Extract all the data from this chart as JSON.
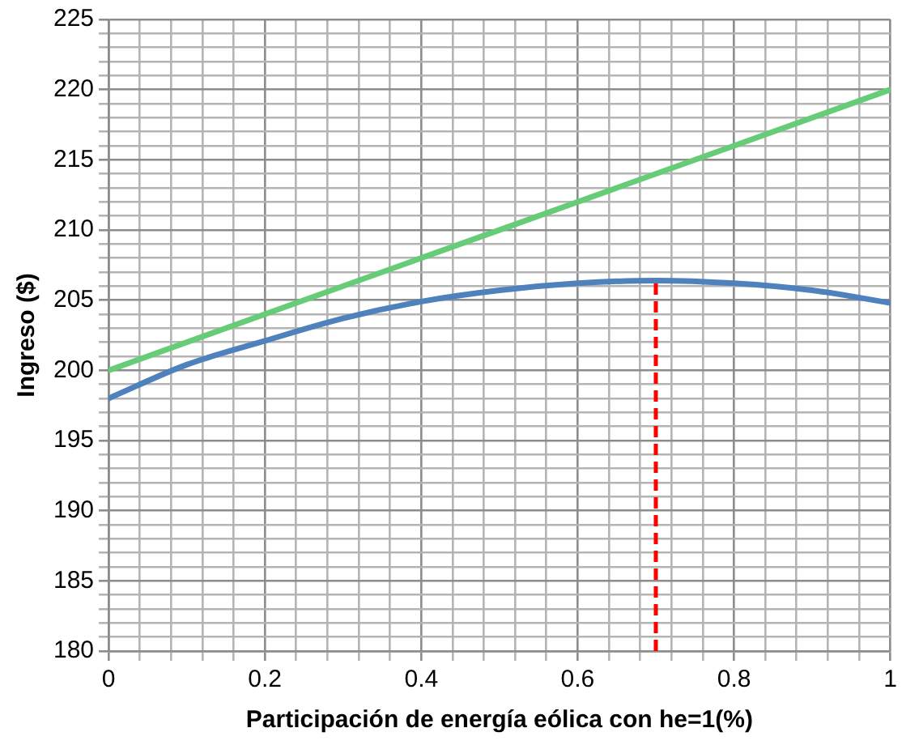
{
  "chart_data": {
    "type": "line",
    "xlabel": "Participación de energía eólica con he=1(%)",
    "ylabel": "Ingreso ($)",
    "series": [
      {
        "color": "#4f81bd",
        "x": [
          0,
          0.1,
          0.2,
          0.3,
          0.4,
          0.5,
          0.6,
          0.7,
          0.8,
          0.9,
          1
        ],
        "values": [
          198.0,
          200.4,
          202.1,
          203.7,
          204.9,
          205.7,
          206.2,
          206.4,
          206.2,
          205.7,
          204.8
        ]
      },
      {
        "color": "#66cc77",
        "x": [
          0,
          1
        ],
        "values": [
          200,
          220
        ]
      }
    ],
    "xlim": [
      0,
      1
    ],
    "xticks": [
      0,
      {
        "value": 0.04,
        "label": null
      },
      {
        "value": 0.08,
        "label": null
      },
      {
        "value": 0.12,
        "label": null
      },
      {
        "value": 0.16,
        "label": null
      },
      0.2,
      {
        "value": 0.24,
        "label": null
      },
      {
        "value": 0.28,
        "label": null
      },
      {
        "value": 0.32,
        "label": null
      },
      {
        "value": 0.36,
        "label": null
      },
      0.4,
      {
        "value": 0.44,
        "label": null
      },
      {
        "value": 0.48,
        "label": null
      },
      {
        "value": 0.52,
        "label": null
      },
      {
        "value": 0.56,
        "label": null
      },
      0.6,
      {
        "value": 0.64,
        "label": null
      },
      {
        "value": 0.68,
        "label": null
      },
      {
        "value": 0.72,
        "label": null
      },
      {
        "value": 0.76,
        "label": null
      },
      0.8,
      {
        "value": 0.84,
        "label": null
      },
      {
        "value": 0.88,
        "label": null
      },
      {
        "value": 0.92,
        "label": null
      },
      {
        "value": 0.96,
        "label": null
      },
      1
    ],
    "ylim": [
      180,
      225
    ],
    "yticks": [
      180,
      {
        "value": 181,
        "label": null
      },
      {
        "value": 182,
        "label": null
      },
      {
        "value": 183,
        "label": null
      },
      {
        "value": 184,
        "label": null
      },
      185,
      {
        "value": 186,
        "label": null
      },
      {
        "value": 187,
        "label": null
      },
      {
        "value": 188,
        "label": null
      },
      {
        "value": 189,
        "label": null
      },
      190,
      {
        "value": 191,
        "label": null
      },
      {
        "value": 192,
        "label": null
      },
      {
        "value": 193,
        "label": null
      },
      {
        "value": 194,
        "label": null
      },
      195,
      {
        "value": 196,
        "label": null
      },
      {
        "value": 197,
        "label": null
      },
      {
        "value": 198,
        "label": null
      },
      {
        "value": 199,
        "label": null
      },
      200,
      {
        "value": 201,
        "label": null
      },
      {
        "value": 202,
        "label": null
      },
      {
        "value": 203,
        "label": null
      },
      {
        "value": 204,
        "label": null
      },
      205,
      {
        "value": 206,
        "label": null
      },
      {
        "value": 207,
        "label": null
      },
      {
        "value": 208,
        "label": null
      },
      {
        "value": 209,
        "label": null
      },
      210,
      {
        "value": 211,
        "label": null
      },
      {
        "value": 212,
        "label": null
      },
      {
        "value": 213,
        "label": null
      },
      {
        "value": 214,
        "label": null
      },
      215,
      {
        "value": 216,
        "label": null
      },
      {
        "value": 217,
        "label": null
      },
      {
        "value": 218,
        "label": null
      },
      {
        "value": 219,
        "label": null
      },
      220,
      {
        "value": 221,
        "label": null
      },
      {
        "value": 222,
        "label": null
      },
      {
        "value": 223,
        "label": null
      },
      {
        "value": 224,
        "label": null
      },
      225
    ],
    "ref_lines": [
      {
        "axis": "x",
        "value": 0.7,
        "color": "#ff0000",
        "line_style": "dashed"
      }
    ],
    "grid": true,
    "legend": false,
    "marker": "none",
    "line_style": "solid"
  }
}
